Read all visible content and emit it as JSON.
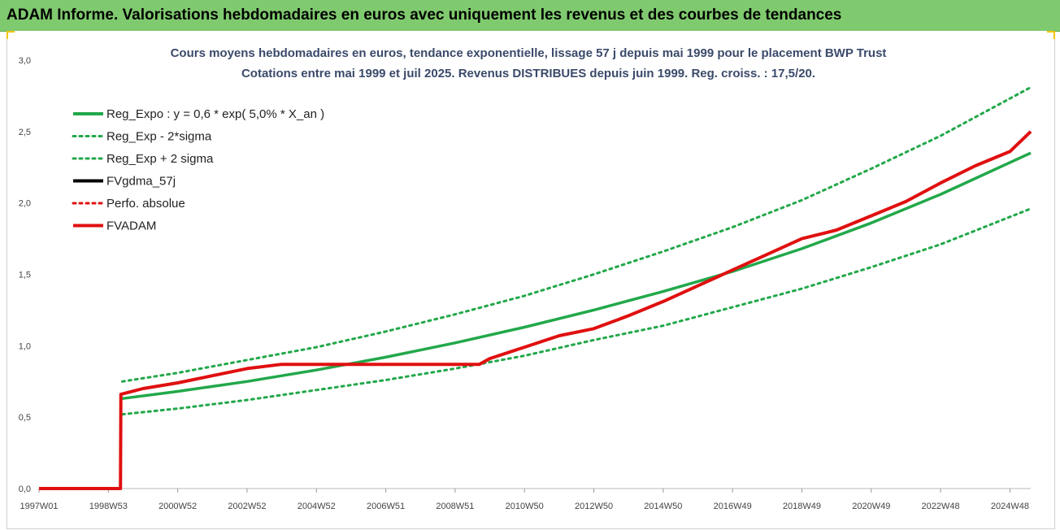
{
  "header": {
    "title": "ADAM Informe. Valorisations hebdomadaires en euros avec uniquement les revenus et des courbes de tendances"
  },
  "chart_data": {
    "type": "line",
    "title": "Cours moyens hebdomadaires en euros, tendance exponentielle, lissage 57 j depuis mai 1999 pour le placement BWP Trust",
    "subtitle": "Cotations entre mai 1999 et juil 2025. Revenus DISTRIBUES depuis juin 1999. Reg. croiss. : 17,5/20.",
    "xlabel": "",
    "ylabel": "",
    "x_range": [
      1997.0,
      2025.6
    ],
    "ylim": [
      0,
      3.0
    ],
    "y_ticks": [
      "0,0",
      "0,5",
      "1,0",
      "1,5",
      "2,0",
      "2,5",
      "3,0"
    ],
    "y_tick_values": [
      0,
      0.5,
      1.0,
      1.5,
      2.0,
      2.5,
      3.0
    ],
    "x_tick_labels": [
      "1997W01",
      "1998W53",
      "2000W52",
      "2002W52",
      "2004W52",
      "2006W51",
      "2008W51",
      "2010W50",
      "2012W50",
      "2014W50",
      "2016W49",
      "2018W49",
      "2020W49",
      "2022W48",
      "2024W48"
    ],
    "x_tick_values": [
      1997.0,
      1999.0,
      2001.0,
      2003.0,
      2005.0,
      2007.0,
      2009.0,
      2011.0,
      2013.0,
      2015.0,
      2017.0,
      2019.0,
      2021.0,
      2023.0,
      2025.0
    ],
    "grid": false,
    "legend_position": "top-left",
    "series": [
      {
        "name": "Reg_Expo : y = 0,6 * exp( 5,0% *  X_an )",
        "color": "#22a84a",
        "style": "solid",
        "x": [
          1999.4,
          2001.0,
          2003.0,
          2005.0,
          2007.0,
          2009.0,
          2011.0,
          2013.0,
          2015.0,
          2017.0,
          2019.0,
          2021.0,
          2023.0,
          2025.6
        ],
        "y": [
          0.63,
          0.68,
          0.75,
          0.83,
          0.92,
          1.02,
          1.13,
          1.25,
          1.38,
          1.52,
          1.68,
          1.86,
          2.06,
          2.35
        ]
      },
      {
        "name": "Reg_Exp - 2*sigma",
        "color": "#22a84a",
        "style": "dotted",
        "x": [
          1999.4,
          2001.0,
          2003.0,
          2005.0,
          2007.0,
          2009.0,
          2011.0,
          2013.0,
          2015.0,
          2017.0,
          2019.0,
          2021.0,
          2023.0,
          2025.6
        ],
        "y": [
          0.52,
          0.56,
          0.62,
          0.69,
          0.76,
          0.84,
          0.93,
          1.04,
          1.14,
          1.27,
          1.4,
          1.55,
          1.71,
          1.96
        ]
      },
      {
        "name": "Reg_Exp + 2 sigma",
        "color": "#22a84a",
        "style": "dotted",
        "x": [
          1999.4,
          2001.0,
          2003.0,
          2005.0,
          2007.0,
          2009.0,
          2011.0,
          2013.0,
          2015.0,
          2017.0,
          2019.0,
          2021.0,
          2023.0,
          2025.6
        ],
        "y": [
          0.75,
          0.81,
          0.9,
          0.99,
          1.1,
          1.22,
          1.35,
          1.5,
          1.66,
          1.83,
          2.02,
          2.24,
          2.47,
          2.81
        ]
      },
      {
        "name": "FVgdma_57j",
        "color": "#000000",
        "style": "solid",
        "x": [
          1997.0,
          1999.35,
          1999.36,
          2000.0,
          2001.0,
          2002.0,
          2003.0,
          2004.0,
          2006.0,
          2009.7,
          2010.0,
          2011.0,
          2012.0,
          2013.0,
          2014.0,
          2015.0,
          2016.0,
          2017.0,
          2018.0,
          2019.0,
          2020.0,
          2021.0,
          2022.0,
          2023.0,
          2024.0,
          2025.0,
          2025.6
        ],
        "y": [
          0,
          0,
          0.66,
          0.7,
          0.74,
          0.79,
          0.84,
          0.87,
          0.87,
          0.87,
          0.91,
          0.99,
          1.07,
          1.12,
          1.21,
          1.31,
          1.42,
          1.53,
          1.64,
          1.75,
          1.81,
          1.91,
          2.01,
          2.14,
          2.26,
          2.36,
          2.5
        ]
      },
      {
        "name": "Perfo. absolue",
        "color": "#e01010",
        "style": "dotted",
        "x": [],
        "y": []
      },
      {
        "name": "FVADAM",
        "color": "#e01010",
        "style": "solid",
        "x": [
          1997.0,
          1999.35,
          1999.36,
          2000.0,
          2001.0,
          2002.0,
          2003.0,
          2004.0,
          2006.0,
          2009.7,
          2010.0,
          2011.0,
          2012.0,
          2013.0,
          2014.0,
          2015.0,
          2016.0,
          2017.0,
          2018.0,
          2019.0,
          2020.0,
          2021.0,
          2022.0,
          2023.0,
          2024.0,
          2025.0,
          2025.6
        ],
        "y": [
          0,
          0,
          0.66,
          0.7,
          0.74,
          0.79,
          0.84,
          0.87,
          0.87,
          0.87,
          0.91,
          0.99,
          1.07,
          1.12,
          1.21,
          1.31,
          1.42,
          1.53,
          1.64,
          1.75,
          1.81,
          1.91,
          2.01,
          2.14,
          2.26,
          2.36,
          2.5
        ]
      }
    ]
  }
}
